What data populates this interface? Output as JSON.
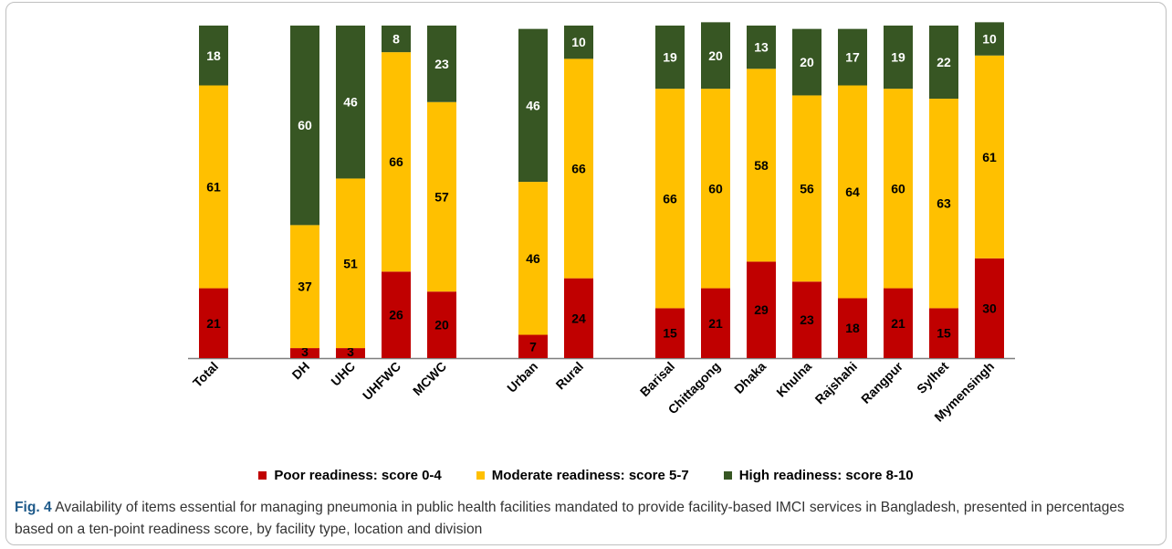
{
  "chart_data": {
    "type": "bar",
    "stacked": true,
    "ylim": [
      0,
      100
    ],
    "categories": [
      "Total",
      "DH",
      "UHC",
      "UHFWC",
      "MCWC",
      "Urban",
      "Rural",
      "Barisal",
      "Chittagong",
      "Dhaka",
      "Khulna",
      "Rajshahi",
      "Rangpur",
      "Sylhet",
      "Mymensingh"
    ],
    "groups": [
      [
        0
      ],
      [
        1,
        2,
        3,
        4
      ],
      [
        5,
        6
      ],
      [
        7,
        8,
        9,
        10,
        11,
        12,
        13,
        14
      ]
    ],
    "series": [
      {
        "name": "Poor readiness: score 0-4",
        "color": "#c00000",
        "values": [
          21,
          3,
          3,
          26,
          20,
          7,
          24,
          15,
          21,
          29,
          23,
          18,
          21,
          15,
          30
        ]
      },
      {
        "name": "Moderate readiness: score 5-7",
        "color": "#ffc000",
        "values": [
          61,
          37,
          51,
          66,
          57,
          46,
          66,
          66,
          60,
          58,
          56,
          64,
          60,
          63,
          61
        ]
      },
      {
        "name": "High readiness: score 8-10",
        "color": "#375623",
        "values": [
          18,
          60,
          46,
          8,
          23,
          46,
          10,
          19,
          20,
          13,
          20,
          17,
          19,
          22,
          10
        ]
      }
    ],
    "grid": false,
    "legend_position": "bottom"
  },
  "caption": {
    "label": "Fig. 4",
    "text": " Availability of items essential for managing pneumonia in public health facilities mandated to provide facility-based IMCI services in Bangladesh, presented in percentages based on a ten-point readiness score, by facility type, location and division"
  }
}
